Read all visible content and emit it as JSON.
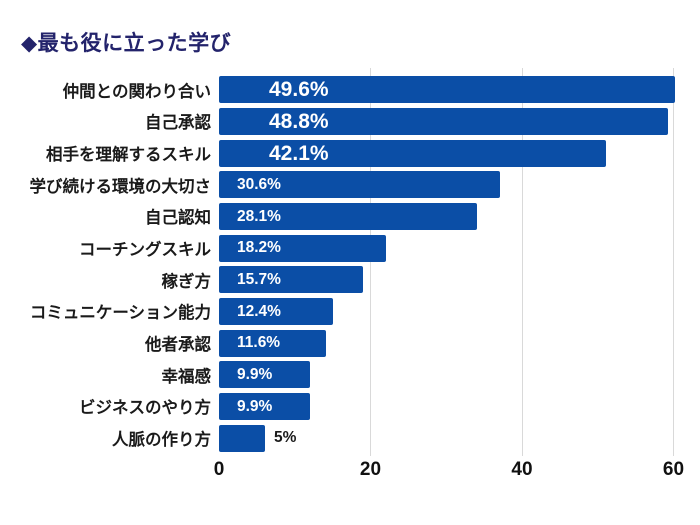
{
  "page": {
    "background_color": "#ffffff"
  },
  "header": {
    "title": "◆最も役に立った学び"
  },
  "chart_data": {
    "type": "bar",
    "orientation": "horizontal",
    "title": "◆最も役に立った学び",
    "categories": [
      "仲間との関わり合い",
      "自己承認",
      "相手を理解するスキル",
      "学び続ける環境の大切さ",
      "自己認知",
      "コーチングスキル",
      "稼ぎ方",
      "コミュニケーション能力",
      "他者承認",
      "幸福感",
      "ビジネスのやり方",
      "人脈の作り方"
    ],
    "values": [
      49.6,
      48.8,
      42.1,
      30.6,
      28.1,
      18.2,
      15.7,
      12.4,
      11.6,
      9.9,
      9.9,
      5
    ],
    "value_labels": [
      "49.6%",
      "48.8%",
      "42.1%",
      "30.6%",
      "28.1%",
      "18.2%",
      "15.7%",
      "12.4%",
      "11.6%",
      "9.9%",
      "9.9%",
      "5%"
    ],
    "value_label_styles": [
      "large-inside",
      "large-inside",
      "large-inside",
      "small-inside",
      "small-inside",
      "small-inside",
      "small-inside",
      "small-inside",
      "small-inside",
      "small-inside",
      "small-inside",
      "outside"
    ],
    "x_tick_labels": [
      "0",
      "20",
      "40",
      "60"
    ],
    "x_tick_values": [
      0,
      20,
      40,
      60
    ],
    "xlim": [
      0,
      60
    ],
    "grid": "vertical gridlines at 20, 40, 60",
    "legend": "none",
    "xlabel": "",
    "ylabel": "",
    "colors": {
      "bar": "#0b4ea6",
      "value_text_inside": "#ffffff",
      "value_text_outside": "#1a1a1a",
      "category_label": "#1a1a1a",
      "axis_tick": "#111111",
      "gridline": "#d9d9d9",
      "title": "#23236b",
      "background": "#ffffff"
    }
  }
}
